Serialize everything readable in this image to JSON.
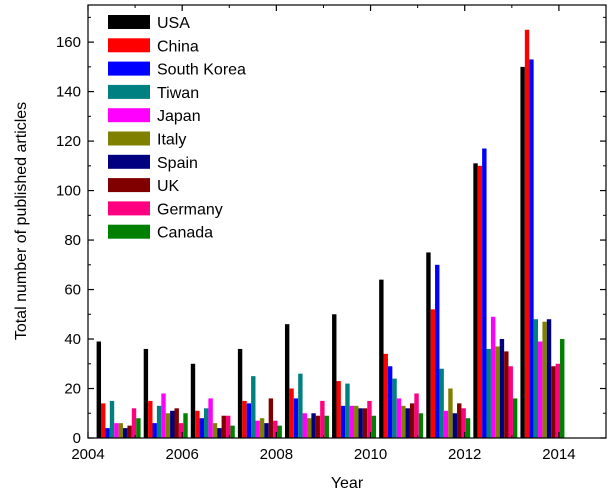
{
  "chart_data": {
    "type": "bar",
    "xlabel": "Year",
    "ylabel": "Total number of published articles",
    "xlim": [
      2004,
      2015
    ],
    "ylim": [
      0,
      175
    ],
    "x_ticks": [
      "2004",
      "2006",
      "2008",
      "2010",
      "2012",
      "2014"
    ],
    "y_ticks": [
      "0",
      "20",
      "40",
      "60",
      "80",
      "100",
      "120",
      "140",
      "160"
    ],
    "legend_position": "top-left",
    "categories": [
      "2005",
      "2006",
      "2007",
      "2008",
      "2009",
      "2010",
      "2011",
      "2012",
      "2013",
      "2014"
    ],
    "series": [
      {
        "name": "USA",
        "color": "#000000",
        "values": [
          39,
          36,
          30,
          36,
          46,
          50,
          64,
          75,
          111,
          150
        ]
      },
      {
        "name": "China",
        "color": "#ff0000",
        "values": [
          14,
          15,
          11,
          15,
          20,
          23,
          34,
          52,
          110,
          165
        ]
      },
      {
        "name": "South Korea",
        "color": "#0000ff",
        "values": [
          4,
          6,
          8,
          14,
          16,
          13,
          29,
          70,
          117,
          153
        ]
      },
      {
        "name": "Tiwan",
        "color": "#008080",
        "values": [
          15,
          13,
          12,
          25,
          26,
          22,
          24,
          28,
          36,
          48
        ]
      },
      {
        "name": "Japan",
        "color": "#ff00ff",
        "values": [
          6,
          18,
          16,
          7,
          10,
          13,
          16,
          11,
          49,
          39
        ]
      },
      {
        "name": "Italy",
        "color": "#808000",
        "values": [
          6,
          10,
          6,
          8,
          8,
          13,
          13,
          20,
          37,
          47
        ]
      },
      {
        "name": "Spain",
        "color": "#000080",
        "values": [
          4,
          11,
          4,
          6,
          10,
          12,
          12,
          10,
          40,
          48
        ]
      },
      {
        "name": "UK",
        "color": "#800000",
        "values": [
          5,
          12,
          9,
          16,
          9,
          12,
          14,
          14,
          35,
          29
        ]
      },
      {
        "name": "Germany",
        "color": "#ff0080",
        "values": [
          12,
          6,
          9,
          7,
          15,
          15,
          18,
          12,
          29,
          30
        ]
      },
      {
        "name": "Canada",
        "color": "#008000",
        "values": [
          8,
          10,
          5,
          5,
          9,
          9,
          10,
          8,
          16,
          40
        ]
      }
    ]
  }
}
